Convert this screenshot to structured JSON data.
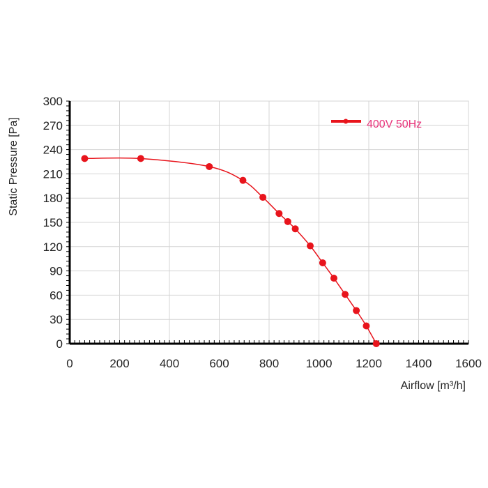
{
  "chart_data": {
    "type": "line",
    "xlabel": "Airflow [m³/h]",
    "ylabel": "Static Pressure [Pa]",
    "xlim": [
      0,
      1600
    ],
    "ylim": [
      0,
      300
    ],
    "x_ticks": [
      0,
      200,
      400,
      600,
      800,
      1000,
      1200,
      1400,
      1600
    ],
    "y_ticks": [
      0,
      30,
      60,
      90,
      120,
      150,
      180,
      210,
      240,
      270,
      300
    ],
    "grid": true,
    "legend_position": "top-right",
    "series": [
      {
        "name": "400V 50Hz",
        "color": "#e8141c",
        "label_color": "#e8337a",
        "x": [
          60,
          285,
          560,
          695,
          775,
          840,
          875,
          905,
          965,
          1015,
          1060,
          1105,
          1150,
          1190,
          1230
        ],
        "y": [
          229,
          229,
          219,
          202,
          181,
          161,
          151,
          142,
          121,
          100,
          81,
          61,
          41,
          22,
          0
        ]
      }
    ]
  }
}
